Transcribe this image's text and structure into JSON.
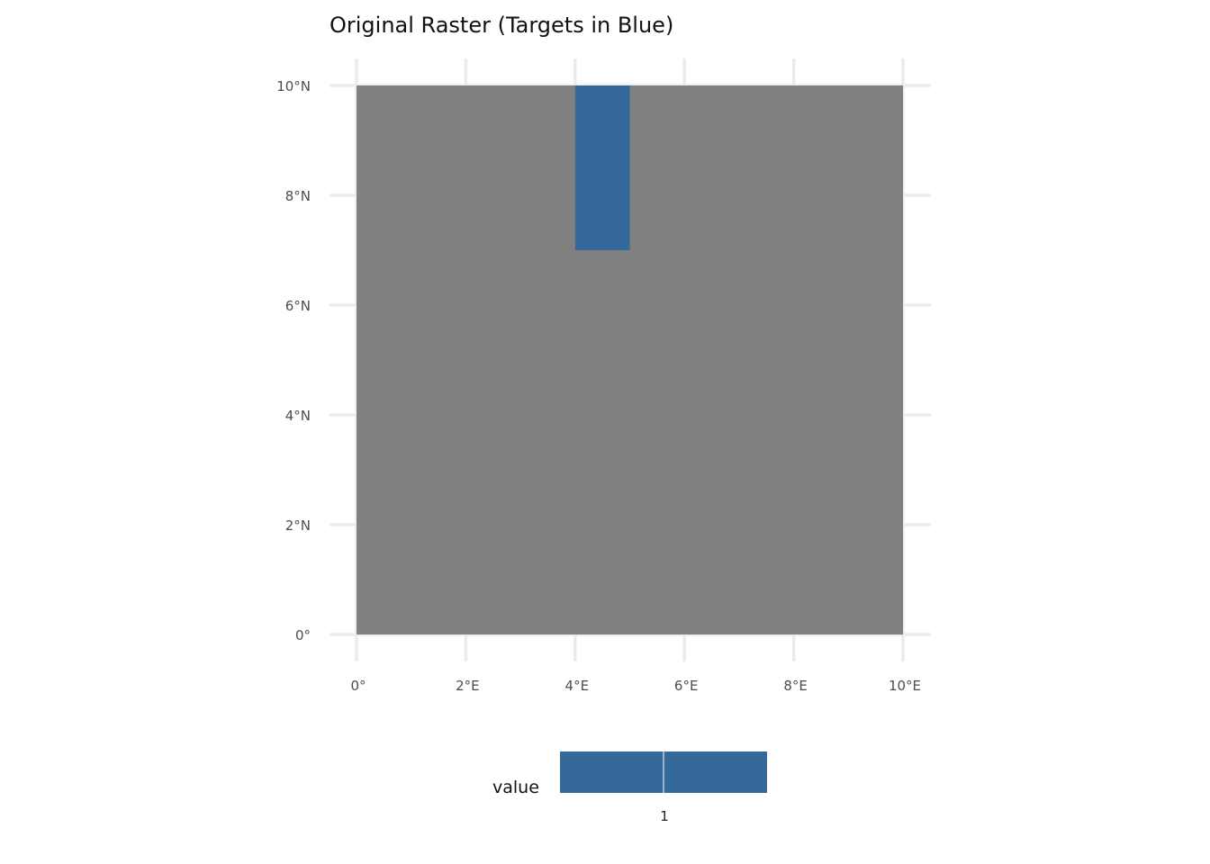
{
  "chart_data": {
    "type": "heatmap",
    "title": "Original Raster (Targets in Blue)",
    "xlabel": "",
    "ylabel": "",
    "xlim": [
      0,
      10
    ],
    "ylim": [
      0,
      10
    ],
    "x_ticks": [
      0,
      2,
      4,
      6,
      8,
      10
    ],
    "x_tick_labels": [
      "0°",
      "2°E",
      "4°E",
      "6°E",
      "8°E",
      "10°E"
    ],
    "y_ticks": [
      0,
      2,
      4,
      6,
      8,
      10
    ],
    "y_tick_labels": [
      "0°",
      "2°N",
      "4°N",
      "6°N",
      "8°N",
      "10°N"
    ],
    "grid": true,
    "cells": [
      {
        "x0": 0,
        "x1": 10,
        "y0": 0,
        "y1": 10,
        "value": null,
        "color": "#808080"
      },
      {
        "x0": 4,
        "x1": 5,
        "y0": 7,
        "y1": 10,
        "value": 1,
        "color": "#35699A"
      }
    ],
    "legend": {
      "title": "value",
      "position": "bottom",
      "breaks": [
        "1"
      ],
      "color": "#35699A"
    }
  },
  "colors": {
    "background": "#ffffff",
    "grid": "#ebebeb",
    "na_fill": "#808080",
    "target_fill": "#35699A"
  }
}
